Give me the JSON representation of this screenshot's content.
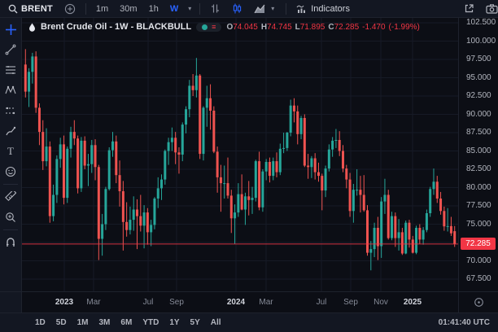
{
  "top_toolbar": {
    "symbol": "BRENT",
    "intervals": [
      "1m",
      "30m",
      "1h",
      "W"
    ],
    "active_interval": "W",
    "indicators_label": "Indicators",
    "icons": [
      "search-icon",
      "add-symbol-icon",
      "bar-style-icon",
      "hollow-candles-icon",
      "area-chart-icon",
      "indicators-icon",
      "open-in-new-window-icon",
      "camera-icon"
    ]
  },
  "legend": {
    "title": "Brent Crude Oil - 1W - BLACKBULL",
    "o_label": "O",
    "o": "74.045",
    "h_label": "H",
    "h": "74.745",
    "l_label": "L",
    "l": "71.895",
    "c_label": "C",
    "c": "72.285",
    "change": "-1.470",
    "change_pct": "(-1.99%)"
  },
  "left_toolbar": {
    "tools": [
      "crosshair",
      "trend-line",
      "fib-retracement",
      "xabcd-pattern",
      "forecast",
      "brush",
      "text",
      "emoji",
      "ruler",
      "zoom-in",
      "magnet"
    ]
  },
  "bottom_toolbar": {
    "ranges": [
      "1D",
      "5D",
      "1M",
      "3M",
      "6M",
      "YTD",
      "1Y",
      "5Y",
      "All"
    ],
    "clock": "01:41:40 UTC"
  },
  "chart_data": {
    "type": "candlestick",
    "title": "Brent Crude Oil - 1W - BLACKBULL",
    "y_min": 67.5,
    "y_max": 102.5,
    "y_tick_step": 2.5,
    "grid": true,
    "y_tick_labels": [
      {
        "value": 102.5,
        "label": "102.500"
      },
      {
        "value": 100.0,
        "label": "100.000"
      },
      {
        "value": 97.5,
        "label": "97.500"
      },
      {
        "value": 95.0,
        "label": "95.000"
      },
      {
        "value": 92.5,
        "label": "92.500"
      },
      {
        "value": 90.0,
        "label": "90.000"
      },
      {
        "value": 87.5,
        "label": "87.500"
      },
      {
        "value": 85.0,
        "label": "85.000"
      },
      {
        "value": 82.5,
        "label": "82.500"
      },
      {
        "value": 80.0,
        "label": "80.000"
      },
      {
        "value": 77.5,
        "label": "77.500"
      },
      {
        "value": 75.0,
        "label": "75.000"
      },
      {
        "value": 70.0,
        "label": "70.000"
      },
      {
        "value": 67.5,
        "label": "67.500"
      }
    ],
    "x_labels": [
      {
        "label": "2023",
        "pos": 0.097,
        "major": true
      },
      {
        "label": "Mar",
        "pos": 0.165,
        "major": false
      },
      {
        "label": "Jul",
        "pos": 0.29,
        "major": false
      },
      {
        "label": "Sep",
        "pos": 0.354,
        "major": false
      },
      {
        "label": "2024",
        "pos": 0.49,
        "major": true
      },
      {
        "label": "Mar",
        "pos": 0.559,
        "major": false
      },
      {
        "label": "Jul",
        "pos": 0.687,
        "major": false
      },
      {
        "label": "Sep",
        "pos": 0.754,
        "major": false
      },
      {
        "label": "Nov",
        "pos": 0.822,
        "major": false
      },
      {
        "label": "2025",
        "pos": 0.896,
        "major": true
      }
    ],
    "price_line": {
      "value": 72.285,
      "label": "72.285",
      "color": "#f23645"
    },
    "colors": {
      "up": "#26a69a",
      "down": "#ef5350",
      "grid": "#161a26",
      "bg": "#0c0e15"
    },
    "candles": [
      [
        96.8,
        98.9,
        92.3,
        93.1
      ],
      [
        93.1,
        96.3,
        91.0,
        95.8
      ],
      [
        95.8,
        98.4,
        94.2,
        97.9
      ],
      [
        97.9,
        98.6,
        90.2,
        90.9
      ],
      [
        90.9,
        91.5,
        85.8,
        87.6
      ],
      [
        87.6,
        89.2,
        82.4,
        83.6
      ],
      [
        83.6,
        88.1,
        82.9,
        85.6
      ],
      [
        85.6,
        86.3,
        75.2,
        76.1
      ],
      [
        76.1,
        80.4,
        75.4,
        79.0
      ],
      [
        79.0,
        84.4,
        77.9,
        83.9
      ],
      [
        83.9,
        86.8,
        82.7,
        85.9
      ],
      [
        85.9,
        87.1,
        77.7,
        78.6
      ],
      [
        78.6,
        85.6,
        77.9,
        85.3
      ],
      [
        85.3,
        88.3,
        84.1,
        87.6
      ],
      [
        87.6,
        89.2,
        85.8,
        86.7
      ],
      [
        86.7,
        87.1,
        79.2,
        79.9
      ],
      [
        79.9,
        86.9,
        79.4,
        86.4
      ],
      [
        86.4,
        87.0,
        82.5,
        83.0
      ],
      [
        83.0,
        84.6,
        80.2,
        83.2
      ],
      [
        83.2,
        86.5,
        82.0,
        85.8
      ],
      [
        85.8,
        86.6,
        81.0,
        82.8
      ],
      [
        82.8,
        83.1,
        70.1,
        73.0
      ],
      [
        73.0,
        76.4,
        70.7,
        75.0
      ],
      [
        75.0,
        80.1,
        74.2,
        79.8
      ],
      [
        79.8,
        85.5,
        79.6,
        85.1
      ],
      [
        85.1,
        87.6,
        84.2,
        86.3
      ],
      [
        86.3,
        87.1,
        80.6,
        81.7
      ],
      [
        81.7,
        83.7,
        77.4,
        79.5
      ],
      [
        79.5,
        80.9,
        71.4,
        75.3
      ],
      [
        75.3,
        78.0,
        73.3,
        74.2
      ],
      [
        74.2,
        77.4,
        73.6,
        75.6
      ],
      [
        75.6,
        78.8,
        74.1,
        77.0
      ],
      [
        77.0,
        78.4,
        71.6,
        76.1
      ],
      [
        76.1,
        79.0,
        74.0,
        74.8
      ],
      [
        74.8,
        77.6,
        71.7,
        76.6
      ],
      [
        76.6,
        77.2,
        72.2,
        73.9
      ],
      [
        73.9,
        75.6,
        72.0,
        74.9
      ],
      [
        74.9,
        78.7,
        74.3,
        78.5
      ],
      [
        78.5,
        81.4,
        77.2,
        79.9
      ],
      [
        79.9,
        81.8,
        78.3,
        81.1
      ],
      [
        81.1,
        85.2,
        80.4,
        85.0
      ],
      [
        85.0,
        86.8,
        83.1,
        86.2
      ],
      [
        86.2,
        88.2,
        85.0,
        86.8
      ],
      [
        86.8,
        87.6,
        83.2,
        84.8
      ],
      [
        84.8,
        85.5,
        81.9,
        84.5
      ],
      [
        84.5,
        88.9,
        83.6,
        88.6
      ],
      [
        88.6,
        91.1,
        87.4,
        90.7
      ],
      [
        90.7,
        94.7,
        89.6,
        93.9
      ],
      [
        93.9,
        95.5,
        92.5,
        93.3
      ],
      [
        93.3,
        97.7,
        92.3,
        95.3
      ],
      [
        95.3,
        95.5,
        83.9,
        84.6
      ],
      [
        84.6,
        91.1,
        83.7,
        90.9
      ],
      [
        90.9,
        93.9,
        88.3,
        92.2
      ],
      [
        92.2,
        94.1,
        87.9,
        90.5
      ],
      [
        90.5,
        91.1,
        84.7,
        84.9
      ],
      [
        84.9,
        85.6,
        79.3,
        81.4
      ],
      [
        81.4,
        83.1,
        76.7,
        80.6
      ],
      [
        80.6,
        83.0,
        78.5,
        80.6
      ],
      [
        80.6,
        84.1,
        78.5,
        78.9
      ],
      [
        78.9,
        79.7,
        73.8,
        75.8
      ],
      [
        75.8,
        77.7,
        72.3,
        76.6
      ],
      [
        76.6,
        80.6,
        76.0,
        79.1
      ],
      [
        79.1,
        81.8,
        76.9,
        77.0
      ],
      [
        77.0,
        79.3,
        74.9,
        78.8
      ],
      [
        78.8,
        80.9,
        76.2,
        78.3
      ],
      [
        78.3,
        80.1,
        76.4,
        78.6
      ],
      [
        78.6,
        83.8,
        78.1,
        83.6
      ],
      [
        83.6,
        84.9,
        76.9,
        77.3
      ],
      [
        77.3,
        82.5,
        76.7,
        82.2
      ],
      [
        82.2,
        83.9,
        81.0,
        83.5
      ],
      [
        83.5,
        84.1,
        80.7,
        81.6
      ],
      [
        81.6,
        84.1,
        81.0,
        83.6
      ],
      [
        83.6,
        84.8,
        81.4,
        82.1
      ],
      [
        82.1,
        86.0,
        81.7,
        85.3
      ],
      [
        85.3,
        87.5,
        84.7,
        85.4
      ],
      [
        85.4,
        87.6,
        85.0,
        87.5
      ],
      [
        87.5,
        92.0,
        87.0,
        91.2
      ],
      [
        91.2,
        92.2,
        88.9,
        90.4
      ],
      [
        90.4,
        91.2,
        85.9,
        87.3
      ],
      [
        87.3,
        89.8,
        86.6,
        89.5
      ],
      [
        89.5,
        90.0,
        82.8,
        83.0
      ],
      [
        83.0,
        84.6,
        81.2,
        82.8
      ],
      [
        82.8,
        84.3,
        81.3,
        84.0
      ],
      [
        84.0,
        84.7,
        81.1,
        82.1
      ],
      [
        82.1,
        83.4,
        80.8,
        81.6
      ],
      [
        81.6,
        81.9,
        76.9,
        79.6
      ],
      [
        79.6,
        83.0,
        78.7,
        82.6
      ],
      [
        82.6,
        85.9,
        82.2,
        85.2
      ],
      [
        85.2,
        86.9,
        84.2,
        86.4
      ],
      [
        86.4,
        88.0,
        85.4,
        86.5
      ],
      [
        86.5,
        87.7,
        84.3,
        85.0
      ],
      [
        85.0,
        85.8,
        82.1,
        82.6
      ],
      [
        82.6,
        83.1,
        79.9,
        81.1
      ],
      [
        81.1,
        82.0,
        76.0,
        76.8
      ],
      [
        76.8,
        80.5,
        75.2,
        79.7
      ],
      [
        79.7,
        82.5,
        78.9,
        79.7
      ],
      [
        79.7,
        81.6,
        76.6,
        79.0
      ],
      [
        79.0,
        81.7,
        76.7,
        76.9
      ],
      [
        76.9,
        77.6,
        70.7,
        71.1
      ],
      [
        71.1,
        72.7,
        68.7,
        71.6
      ],
      [
        71.6,
        75.2,
        70.5,
        74.5
      ],
      [
        74.5,
        76.0,
        70.1,
        72.0
      ],
      [
        72.0,
        78.7,
        70.4,
        78.1
      ],
      [
        78.1,
        81.2,
        76.4,
        79.0
      ],
      [
        79.0,
        79.7,
        72.9,
        73.1
      ],
      [
        73.1,
        76.7,
        72.8,
        76.1
      ],
      [
        76.1,
        76.6,
        71.9,
        73.1
      ],
      [
        73.1,
        75.7,
        71.4,
        73.9
      ],
      [
        73.9,
        74.5,
        70.8,
        71.0
      ],
      [
        71.0,
        75.5,
        70.9,
        75.2
      ],
      [
        75.2,
        75.6,
        71.8,
        72.9
      ],
      [
        72.9,
        73.4,
        71.0,
        71.1
      ],
      [
        71.1,
        74.8,
        70.9,
        74.5
      ],
      [
        74.5,
        75.0,
        72.3,
        72.9
      ],
      [
        72.9,
        74.6,
        72.2,
        74.2
      ],
      [
        74.2,
        77.0,
        73.9,
        76.5
      ],
      [
        76.5,
        80.1,
        76.0,
        79.8
      ],
      [
        79.8,
        82.6,
        79.0,
        80.8
      ],
      [
        80.8,
        81.6,
        77.9,
        78.5
      ],
      [
        78.5,
        79.4,
        76.3,
        76.8
      ],
      [
        76.8,
        77.4,
        74.1,
        74.7
      ],
      [
        74.7,
        77.2,
        74.0,
        74.74
      ],
      [
        74.74,
        76.0,
        73.4,
        73.755
      ],
      [
        74.045,
        74.745,
        71.895,
        72.285
      ]
    ]
  }
}
